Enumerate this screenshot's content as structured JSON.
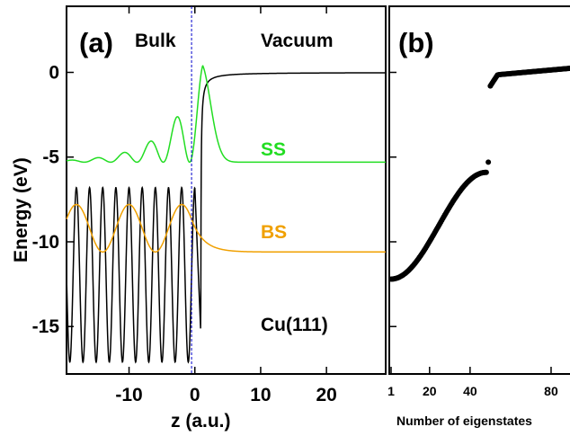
{
  "chart_data": [
    {
      "type": "line",
      "panel_label": "(a)",
      "xlabel": "z (a.u.)",
      "ylabel": "Energy (eV)",
      "xlim": [
        -19.5,
        29
      ],
      "ylim": [
        -17.8,
        3.9
      ],
      "xticks": [
        "-10",
        "0",
        "10",
        "20"
      ],
      "xtick_values": [
        -10,
        0,
        10,
        20
      ],
      "yticks": [
        "0",
        "-5",
        "-10",
        "-15"
      ],
      "ytick_values": [
        0,
        -5,
        -10,
        -15
      ],
      "region_labels": {
        "left": "Bulk",
        "right": "Vacuum"
      },
      "surface_label": "Cu(111)",
      "surface_line_z": -0.5,
      "colors": {
        "potential": "#000000",
        "ss": "#22dd22",
        "bs": "#f0a000",
        "surface_line": "#0000cc"
      },
      "series": [
        {
          "name": "SS",
          "type": "wavefunction",
          "baseline_energy": -5.3,
          "decay_bulk": 0.12,
          "period": 4.0,
          "peak_energy": 0.4,
          "tail_decay": 0.65
        },
        {
          "name": "BS",
          "type": "wavefunction",
          "baseline_energy": -10.6,
          "period": 8.0,
          "amplitude": 2.8,
          "tail_decay": 0.55
        },
        {
          "type": "potential",
          "bulk_min": -17.1,
          "bulk_max": -6.8,
          "bulk_period": 2.0,
          "vacuum_level": 0.0,
          "image_min": -15.4
        }
      ]
    },
    {
      "type": "scatter",
      "panel_label": "(b)",
      "xlabel": "Number of eigenstates",
      "xticks": [
        "1",
        "20",
        "40",
        "80"
      ],
      "xtick_values": [
        1,
        20,
        40,
        80
      ],
      "ylim": [
        -17.8,
        3.9
      ],
      "marker_color": "#000000",
      "series": [
        {
          "segment": "bulk_band",
          "x_range": [
            1,
            48
          ],
          "y_range": [
            -12.2,
            -5.9
          ],
          "isolated_point": {
            "x": 49,
            "y": -5.3
          }
        },
        {
          "segment": "vacuum_states",
          "x_range": [
            50,
            95
          ],
          "y_range": [
            -0.8,
            0.3
          ]
        }
      ]
    }
  ]
}
